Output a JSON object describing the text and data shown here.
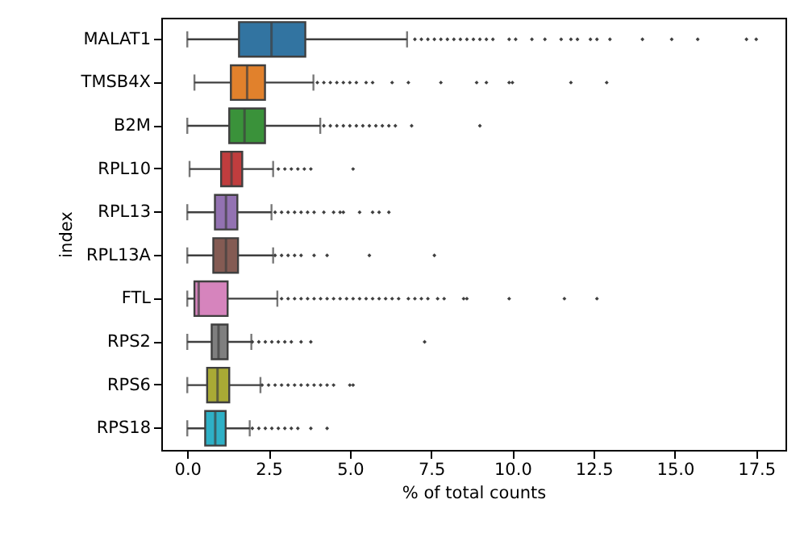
{
  "chart_data": {
    "type": "box",
    "orientation": "horizontal",
    "xlabel": "% of total counts",
    "ylabel": "index",
    "categories": [
      "MALAT1",
      "TMSB4X",
      "B2M",
      "RPL10",
      "RPL13",
      "RPL13A",
      "FTL",
      "RPS2",
      "RPS6",
      "RPS18"
    ],
    "colors": [
      "#3274a1",
      "#e1812c",
      "#3a923a",
      "#c03d3e",
      "#9372b2",
      "#845b53",
      "#d684bd",
      "#7f7f7f",
      "#a9aa35",
      "#2eb0c6"
    ],
    "xlim": [
      -0.8,
      18.4
    ],
    "xticks": [
      {
        "value": 0,
        "label": "0.0"
      },
      2.5,
      {
        "value": 5,
        "label": "5.0"
      },
      7.5,
      {
        "value": 10,
        "label": "10.0"
      },
      12.5,
      {
        "value": 15,
        "label": "15.0"
      },
      17.5
    ],
    "grid": false,
    "boxes": [
      {
        "low": 0,
        "q1": 1.59,
        "median": 2.59,
        "q3": 3.63,
        "high": 6.76,
        "outliers": [
          7.0,
          7.2,
          7.4,
          7.6,
          7.8,
          8.0,
          8.2,
          8.4,
          8.6,
          8.8,
          9.0,
          9.2,
          9.4,
          9.9,
          10.1,
          10.6,
          11.0,
          11.5,
          11.8,
          12.0,
          12.4,
          12.6,
          13.0,
          14.0,
          14.9,
          15.7,
          17.2,
          17.5
        ]
      },
      {
        "low": 0.22,
        "q1": 1.34,
        "median": 1.84,
        "q3": 2.39,
        "high": 3.88,
        "outliers": [
          4.0,
          4.2,
          4.4,
          4.6,
          4.8,
          5.0,
          5.2,
          5.5,
          5.7,
          6.3,
          6.8,
          7.8,
          8.9,
          9.2,
          9.9,
          10.0,
          11.8,
          12.9
        ]
      },
      {
        "low": 0,
        "q1": 1.29,
        "median": 1.76,
        "q3": 2.39,
        "high": 4.09,
        "outliers": [
          4.2,
          4.4,
          4.6,
          4.8,
          5.0,
          5.2,
          5.4,
          5.6,
          5.8,
          6.0,
          6.2,
          6.4,
          6.9,
          9.0
        ]
      },
      {
        "low": 0.07,
        "q1": 1.04,
        "median": 1.36,
        "q3": 1.69,
        "high": 2.64,
        "outliers": [
          2.8,
          3.0,
          3.2,
          3.4,
          3.6,
          3.8,
          5.1
        ]
      },
      {
        "low": 0,
        "q1": 0.85,
        "median": 1.19,
        "q3": 1.54,
        "high": 2.59,
        "outliers": [
          2.7,
          2.9,
          3.1,
          3.3,
          3.5,
          3.7,
          3.9,
          4.2,
          4.5,
          4.7,
          4.8,
          5.3,
          5.7,
          5.9,
          6.2
        ]
      },
      {
        "low": 0,
        "q1": 0.8,
        "median": 1.19,
        "q3": 1.56,
        "high": 2.64,
        "outliers": [
          2.7,
          2.9,
          3.1,
          3.3,
          3.5,
          3.9,
          4.3,
          5.6,
          7.6
        ]
      },
      {
        "low": 0,
        "q1": 0.22,
        "median": 0.35,
        "q3": 1.24,
        "high": 2.77,
        "outliers": [
          2.9,
          3.1,
          3.3,
          3.5,
          3.7,
          3.9,
          4.1,
          4.3,
          4.5,
          4.7,
          4.9,
          5.1,
          5.3,
          5.5,
          5.7,
          5.9,
          6.1,
          6.3,
          6.5,
          6.8,
          7.0,
          7.2,
          7.4,
          7.7,
          7.9,
          8.5,
          8.6,
          9.9,
          11.6,
          12.6
        ]
      },
      {
        "low": 0,
        "q1": 0.75,
        "median": 0.96,
        "q3": 1.24,
        "high": 1.97,
        "outliers": [
          2.0,
          2.2,
          2.4,
          2.6,
          2.8,
          3.0,
          3.2,
          3.5,
          3.8,
          7.3
        ]
      },
      {
        "low": 0,
        "q1": 0.61,
        "median": 0.93,
        "q3": 1.29,
        "high": 2.25,
        "outliers": [
          2.3,
          2.5,
          2.7,
          2.9,
          3.1,
          3.3,
          3.5,
          3.7,
          3.9,
          4.1,
          4.3,
          4.5,
          5.0,
          5.1
        ]
      },
      {
        "low": 0,
        "q1": 0.55,
        "median": 0.86,
        "q3": 1.18,
        "high": 1.92,
        "outliers": [
          2.0,
          2.2,
          2.4,
          2.6,
          2.8,
          3.0,
          3.2,
          3.4,
          3.8,
          4.3
        ]
      }
    ]
  }
}
